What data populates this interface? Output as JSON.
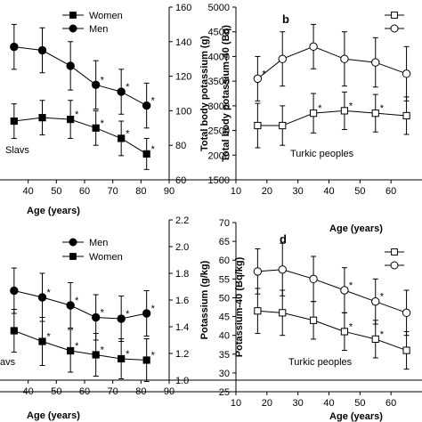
{
  "chart_data": [
    {
      "id": "a",
      "type": "line",
      "letter": "",
      "annotation": "Slavs",
      "xlabel": "Age (years)",
      "ylabel": "Total body potassium (g)",
      "xlim": [
        30,
        90
      ],
      "xticks": [
        40,
        50,
        60,
        70,
        80,
        90
      ],
      "ylim": [
        60,
        160
      ],
      "yticks": [
        60,
        80,
        100,
        120,
        140,
        160
      ],
      "series": [
        {
          "name": "Women",
          "marker": "square-filled",
          "x": [
            35,
            45,
            55,
            64,
            73,
            82
          ],
          "y": [
            94,
            96,
            95,
            90,
            84,
            75
          ],
          "err": [
            10,
            10,
            11,
            10,
            10,
            9
          ],
          "stars": [
            false,
            false,
            true,
            true,
            true,
            true
          ]
        },
        {
          "name": "Men",
          "marker": "circle-filled",
          "x": [
            35,
            45,
            55,
            64,
            73,
            82
          ],
          "y": [
            137,
            135,
            126,
            115,
            111,
            103
          ],
          "err": [
            13,
            13,
            14,
            14,
            13,
            13
          ],
          "stars": [
            false,
            false,
            false,
            true,
            true,
            true
          ]
        }
      ],
      "legend": [
        {
          "name": "Women",
          "marker": "square-filled"
        },
        {
          "name": "Men",
          "marker": "circle-filled"
        }
      ]
    },
    {
      "id": "b",
      "type": "line",
      "letter": "b",
      "annotation": "Turkic peoples",
      "xlabel": "Age (years)",
      "ylabel": "Total body potassium-40 (Bq)",
      "xlim": [
        10,
        70
      ],
      "xticks": [
        10,
        20,
        30,
        40,
        50,
        60
      ],
      "ylim": [
        1500,
        5000
      ],
      "yticks": [
        1500,
        2000,
        2500,
        3000,
        3500,
        4000,
        4500,
        5000
      ],
      "series": [
        {
          "name": "",
          "marker": "circle-open",
          "x": [
            17,
            25,
            35,
            45,
            55,
            65
          ],
          "y": [
            3550,
            3950,
            4200,
            3950,
            3880,
            3650
          ],
          "err": [
            450,
            550,
            450,
            550,
            500,
            550
          ],
          "stars": [
            true,
            false,
            false,
            false,
            false,
            false
          ]
        },
        {
          "name": "",
          "marker": "square-open",
          "x": [
            17,
            25,
            35,
            45,
            55,
            65
          ],
          "y": [
            2600,
            2600,
            2850,
            2900,
            2850,
            2800
          ],
          "err": [
            450,
            400,
            400,
            380,
            380,
            380
          ],
          "stars": [
            false,
            false,
            true,
            true,
            true,
            false
          ]
        }
      ],
      "legend": [
        {
          "name": "",
          "marker": "square-open"
        },
        {
          "name": "",
          "marker": "circle-open"
        }
      ]
    },
    {
      "id": "c",
      "type": "line",
      "letter": "",
      "annotation": "avs",
      "xlabel": "Age (years)",
      "ylabel": "Potassium (g/kg)",
      "xlim": [
        30,
        90
      ],
      "xticks": [
        40,
        50,
        60,
        70,
        80,
        90
      ],
      "ylim": [
        1.0,
        2.2
      ],
      "yticks": [
        1.0,
        1.2,
        1.4,
        1.6,
        1.8,
        2.0,
        2.2
      ],
      "series": [
        {
          "name": "Men",
          "marker": "circle-filled",
          "x": [
            35,
            45,
            55,
            64,
            73,
            82
          ],
          "y": [
            1.67,
            1.62,
            1.56,
            1.47,
            1.46,
            1.5
          ],
          "err": [
            0.17,
            0.18,
            0.17,
            0.17,
            0.17,
            0.17
          ],
          "stars": [
            false,
            true,
            true,
            true,
            true,
            true
          ]
        },
        {
          "name": "Women",
          "marker": "square-filled",
          "x": [
            35,
            45,
            55,
            64,
            73,
            82
          ],
          "y": [
            1.37,
            1.29,
            1.22,
            1.19,
            1.16,
            1.15
          ],
          "err": [
            0.16,
            0.18,
            0.16,
            0.16,
            0.15,
            0.16
          ],
          "stars": [
            false,
            true,
            true,
            true,
            true,
            true
          ]
        }
      ],
      "legend": [
        {
          "name": "Men",
          "marker": "circle-filled"
        },
        {
          "name": "Women",
          "marker": "square-filled"
        }
      ]
    },
    {
      "id": "d",
      "type": "line",
      "letter": "d",
      "annotation": "Turkic peoples",
      "xlabel": "Age (years)",
      "ylabel": "Potassium-40 (Bq/kg)",
      "xlim": [
        10,
        70
      ],
      "xticks": [
        10,
        20,
        30,
        40,
        50,
        60
      ],
      "ylim": [
        25,
        70
      ],
      "yticks": [
        25,
        30,
        35,
        40,
        45,
        50,
        55,
        60,
        65,
        70
      ],
      "series": [
        {
          "name": "",
          "marker": "circle-open",
          "x": [
            17,
            25,
            35,
            45,
            55,
            65
          ],
          "y": [
            57,
            57.5,
            55,
            52,
            49,
            46
          ],
          "err": [
            6,
            7,
            6,
            6,
            6,
            6
          ],
          "stars": [
            false,
            false,
            false,
            true,
            true,
            false
          ]
        },
        {
          "name": "",
          "marker": "square-open",
          "x": [
            17,
            25,
            35,
            45,
            55,
            65
          ],
          "y": [
            46.5,
            46,
            44,
            41,
            39,
            36
          ],
          "err": [
            6,
            6,
            5,
            5,
            5,
            5
          ],
          "stars": [
            false,
            false,
            false,
            true,
            true,
            false
          ]
        }
      ],
      "legend": [
        {
          "name": "",
          "marker": "square-open"
        },
        {
          "name": "",
          "marker": "circle-open"
        }
      ]
    }
  ]
}
